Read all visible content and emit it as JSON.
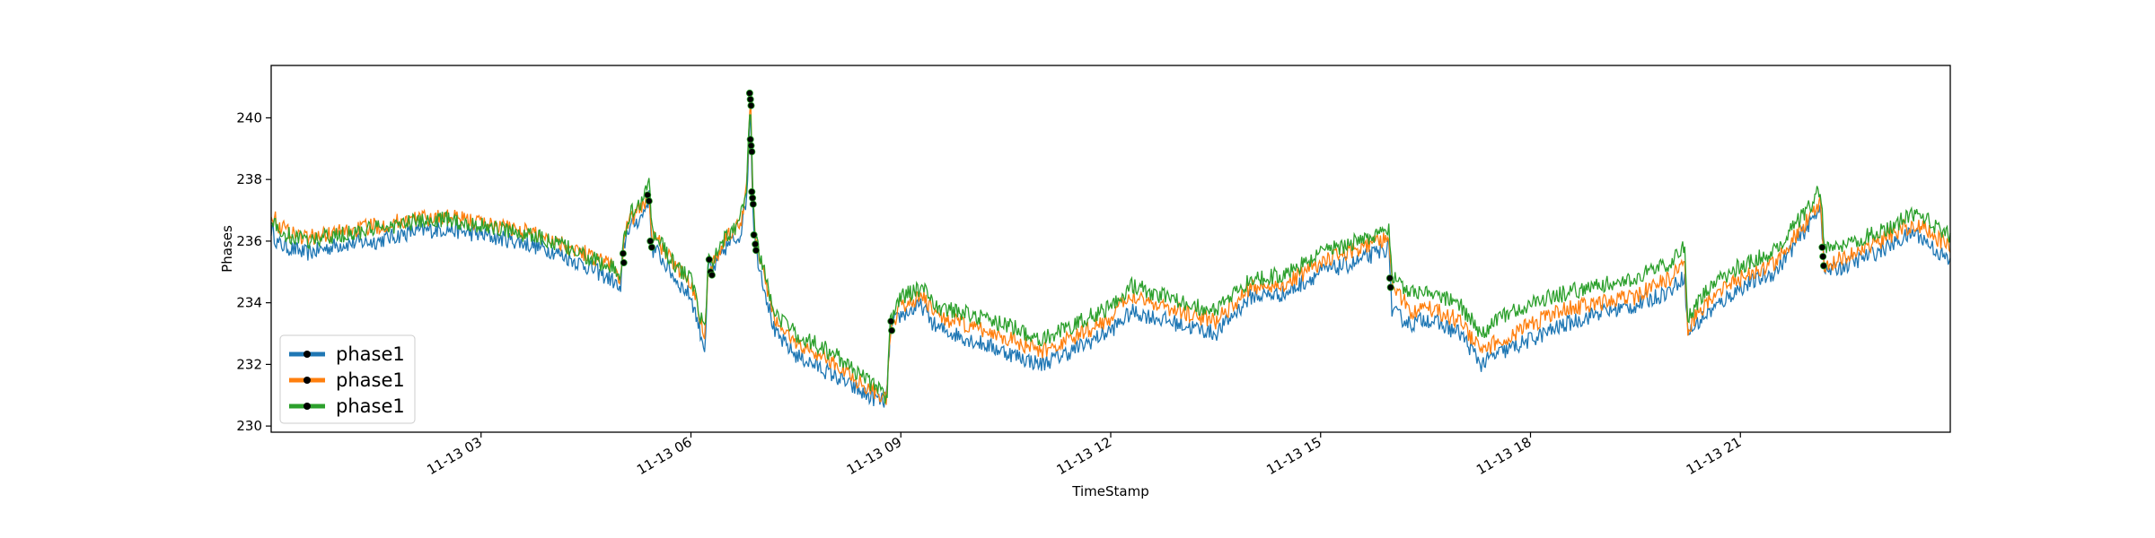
{
  "chart_data": {
    "type": "line",
    "title": "",
    "xlabel": "TimeStamp",
    "ylabel": "Phases",
    "x_range_hours": [
      0.0,
      24.0
    ],
    "ylim": [
      229.8,
      241.7
    ],
    "y_ticks": [
      230,
      232,
      234,
      236,
      238,
      240
    ],
    "x_ticks": [
      {
        "hour": 3,
        "label": "11-13 03"
      },
      {
        "hour": 6,
        "label": "11-13 06"
      },
      {
        "hour": 9,
        "label": "11-13 09"
      },
      {
        "hour": 12,
        "label": "11-13 12"
      },
      {
        "hour": 15,
        "label": "11-13 15"
      },
      {
        "hour": 18,
        "label": "11-13 18"
      },
      {
        "hour": 21,
        "label": "11-13 21"
      }
    ],
    "grid": false,
    "legend_position": "lower-left",
    "legend_marker_color": "#000000",
    "series": [
      {
        "name": "phase1",
        "color": "#1f77b4",
        "x": [
          0.0,
          0.1,
          0.5,
          1.0,
          1.5,
          2.0,
          2.5,
          3.0,
          3.5,
          4.0,
          4.5,
          4.9,
          5.0,
          5.02,
          5.1,
          5.3,
          5.4,
          5.45,
          5.5,
          5.8,
          6.0,
          6.2,
          6.25,
          6.3,
          6.5,
          6.7,
          6.8,
          6.85,
          6.88,
          6.92,
          7.0,
          7.2,
          7.5,
          8.0,
          8.5,
          8.75,
          8.8,
          8.85,
          9.0,
          9.3,
          9.5,
          10.0,
          10.5,
          11.0,
          11.5,
          12.0,
          12.3,
          12.5,
          13.0,
          13.5,
          14.0,
          14.5,
          15.0,
          15.5,
          15.98,
          16.02,
          16.3,
          16.5,
          17.0,
          17.3,
          17.5,
          18.0,
          18.5,
          19.0,
          19.5,
          20.0,
          20.2,
          20.25,
          20.5,
          21.0,
          21.5,
          22.0,
          22.15,
          22.2,
          22.5,
          23.0,
          23.5,
          24.0
        ],
        "values": [
          236.4,
          235.9,
          235.6,
          235.9,
          236.0,
          236.3,
          236.4,
          236.2,
          236.0,
          235.7,
          235.2,
          234.7,
          234.3,
          235.6,
          236.4,
          236.8,
          237.4,
          235.7,
          235.7,
          234.7,
          234.2,
          232.5,
          235.3,
          235.0,
          235.8,
          236.2,
          237.5,
          240.6,
          237.3,
          235.8,
          235.0,
          233.0,
          232.3,
          231.7,
          231.0,
          230.8,
          230.9,
          233.2,
          233.6,
          233.9,
          233.2,
          232.8,
          232.4,
          232.0,
          232.5,
          233.1,
          233.7,
          233.6,
          233.3,
          233.0,
          234.2,
          234.3,
          235.0,
          235.3,
          235.8,
          233.7,
          233.3,
          233.5,
          233.0,
          232.0,
          232.3,
          232.8,
          233.3,
          233.7,
          233.9,
          234.4,
          234.9,
          233.0,
          233.6,
          234.5,
          235.0,
          236.6,
          237.2,
          235.0,
          235.2,
          235.7,
          236.3,
          235.3
        ]
      },
      {
        "name": "phase1",
        "color": "#ff7f0e",
        "x": [
          0.0,
          0.1,
          0.5,
          1.0,
          1.5,
          2.0,
          2.5,
          3.0,
          3.5,
          4.0,
          4.5,
          4.9,
          5.0,
          5.02,
          5.1,
          5.3,
          5.4,
          5.45,
          5.5,
          5.8,
          6.0,
          6.2,
          6.25,
          6.3,
          6.5,
          6.7,
          6.8,
          6.85,
          6.88,
          6.92,
          7.0,
          7.2,
          7.5,
          8.0,
          8.5,
          8.75,
          8.8,
          8.85,
          9.0,
          9.3,
          9.5,
          10.0,
          10.5,
          11.0,
          11.5,
          12.0,
          12.3,
          12.5,
          13.0,
          13.5,
          14.0,
          14.5,
          15.0,
          15.5,
          15.98,
          16.02,
          16.3,
          16.5,
          17.0,
          17.3,
          17.5,
          18.0,
          18.5,
          19.0,
          19.5,
          20.0,
          20.2,
          20.25,
          20.5,
          21.0,
          21.5,
          22.0,
          22.15,
          22.2,
          22.5,
          23.0,
          23.5,
          24.0
        ],
        "values": [
          237.0,
          236.5,
          236.1,
          236.3,
          236.5,
          236.7,
          236.8,
          236.6,
          236.4,
          236.1,
          235.6,
          235.2,
          234.7,
          235.5,
          236.6,
          237.1,
          237.6,
          236.0,
          236.1,
          235.1,
          234.7,
          233.0,
          235.1,
          235.2,
          236.1,
          236.5,
          237.8,
          241.0,
          237.6,
          236.1,
          235.3,
          233.4,
          232.7,
          232.1,
          231.3,
          231.0,
          230.8,
          233.0,
          233.9,
          234.2,
          233.6,
          233.2,
          232.9,
          232.4,
          232.9,
          233.5,
          234.3,
          234.1,
          233.7,
          233.4,
          234.5,
          234.6,
          235.3,
          235.7,
          236.1,
          234.6,
          233.7,
          233.9,
          233.4,
          232.4,
          232.7,
          233.3,
          233.8,
          234.0,
          234.2,
          234.8,
          235.3,
          233.2,
          234.0,
          234.8,
          235.3,
          236.8,
          237.3,
          235.2,
          235.5,
          236.0,
          236.6,
          235.8
        ]
      },
      {
        "name": "phase1",
        "color": "#2ca02c",
        "x": [
          0.0,
          0.1,
          0.5,
          1.0,
          1.5,
          2.0,
          2.5,
          3.0,
          3.5,
          4.0,
          4.5,
          4.9,
          5.0,
          5.02,
          5.1,
          5.3,
          5.4,
          5.45,
          5.5,
          5.8,
          6.0,
          6.2,
          6.25,
          6.3,
          6.5,
          6.7,
          6.8,
          6.85,
          6.88,
          6.92,
          7.0,
          7.2,
          7.5,
          8.0,
          8.5,
          8.75,
          8.8,
          8.85,
          9.0,
          9.3,
          9.5,
          10.0,
          10.5,
          11.0,
          11.5,
          12.0,
          12.3,
          12.5,
          13.0,
          13.5,
          14.0,
          14.5,
          15.0,
          15.5,
          15.98,
          16.02,
          16.3,
          16.5,
          17.0,
          17.3,
          17.5,
          18.0,
          18.5,
          19.0,
          19.5,
          20.0,
          20.2,
          20.25,
          20.5,
          21.0,
          21.5,
          22.0,
          22.15,
          22.2,
          22.5,
          23.0,
          23.5,
          24.0
        ],
        "values": [
          236.8,
          236.3,
          236.0,
          236.2,
          236.4,
          236.6,
          236.7,
          236.5,
          236.3,
          236.0,
          235.5,
          235.1,
          234.6,
          235.7,
          236.8,
          237.3,
          238.0,
          236.2,
          236.2,
          235.1,
          234.8,
          233.0,
          235.5,
          235.4,
          236.2,
          236.6,
          237.9,
          240.9,
          237.6,
          236.2,
          235.4,
          233.6,
          233.0,
          232.4,
          231.5,
          231.1,
          230.9,
          233.4,
          234.2,
          234.5,
          233.9,
          233.6,
          233.3,
          232.8,
          233.3,
          233.9,
          234.6,
          234.4,
          234.0,
          233.7,
          234.8,
          234.9,
          235.6,
          236.0,
          236.4,
          234.9,
          234.3,
          234.4,
          233.9,
          233.0,
          233.4,
          234.0,
          234.3,
          234.6,
          234.8,
          235.3,
          235.8,
          233.5,
          234.4,
          235.2,
          235.7,
          237.2,
          237.7,
          235.7,
          235.9,
          236.3,
          236.9,
          236.2
        ]
      }
    ],
    "marker_points": [
      {
        "x": 5.03,
        "y": 235.6
      },
      {
        "x": 5.04,
        "y": 235.3
      },
      {
        "x": 5.38,
        "y": 237.5
      },
      {
        "x": 5.4,
        "y": 237.3
      },
      {
        "x": 5.42,
        "y": 236.0
      },
      {
        "x": 5.44,
        "y": 235.8
      },
      {
        "x": 6.26,
        "y": 235.4
      },
      {
        "x": 6.28,
        "y": 235.0
      },
      {
        "x": 6.3,
        "y": 234.9
      },
      {
        "x": 6.84,
        "y": 240.8
      },
      {
        "x": 6.85,
        "y": 240.6
      },
      {
        "x": 6.86,
        "y": 240.4
      },
      {
        "x": 6.85,
        "y": 239.3
      },
      {
        "x": 6.86,
        "y": 239.1
      },
      {
        "x": 6.87,
        "y": 238.9
      },
      {
        "x": 6.87,
        "y": 237.6
      },
      {
        "x": 6.88,
        "y": 237.4
      },
      {
        "x": 6.89,
        "y": 237.2
      },
      {
        "x": 6.9,
        "y": 236.2
      },
      {
        "x": 6.92,
        "y": 235.9
      },
      {
        "x": 6.93,
        "y": 235.7
      },
      {
        "x": 8.86,
        "y": 233.4
      },
      {
        "x": 8.87,
        "y": 233.1
      },
      {
        "x": 15.99,
        "y": 234.8
      },
      {
        "x": 16.0,
        "y": 234.5
      },
      {
        "x": 22.17,
        "y": 235.8
      },
      {
        "x": 22.18,
        "y": 235.5
      },
      {
        "x": 22.19,
        "y": 235.2
      }
    ]
  }
}
